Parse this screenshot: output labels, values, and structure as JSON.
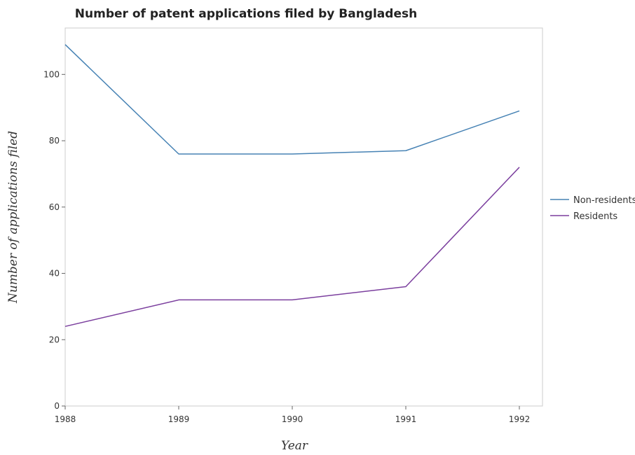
{
  "chart_data": {
    "type": "line",
    "title": "Number of patent applications filed by Bangladesh",
    "xlabel": "Year",
    "ylabel": "Number of applications filed",
    "categories": [
      "1988",
      "1989",
      "1990",
      "1991",
      "1992"
    ],
    "ylim": [
      0,
      114
    ],
    "yticks": [
      0,
      20,
      40,
      60,
      80,
      100
    ],
    "grid": false,
    "legend_position": "right",
    "series": [
      {
        "name": "Non-residents",
        "color": "#4682b4",
        "values": [
          109,
          76,
          76,
          77,
          89
        ]
      },
      {
        "name": "Residents",
        "color": "#7b3f9e",
        "values": [
          24,
          32,
          32,
          36,
          72
        ]
      }
    ]
  }
}
